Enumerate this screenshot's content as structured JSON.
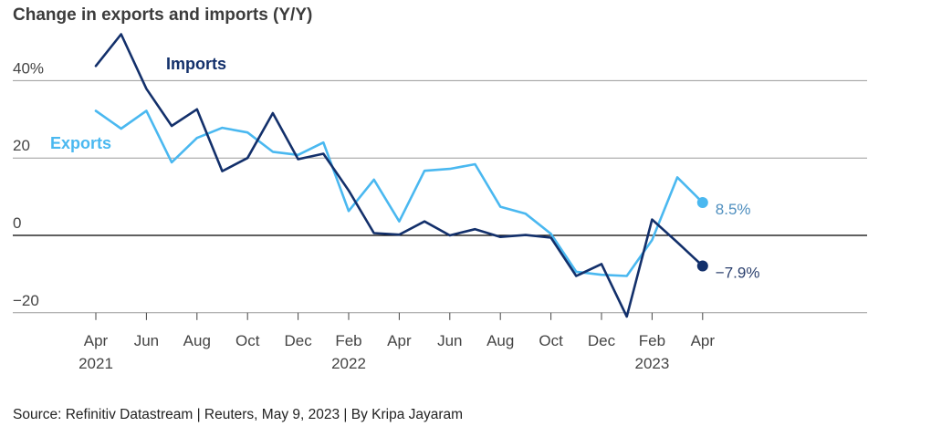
{
  "chart_data": {
    "type": "line",
    "title": "Change in exports and imports (Y/Y)",
    "xlabel": "",
    "ylabel": "",
    "ylim": [
      -21,
      45
    ],
    "yticks": [
      {
        "value": 40,
        "label": "40%"
      },
      {
        "value": 20,
        "label": "20"
      },
      {
        "value": 0,
        "label": "0"
      },
      {
        "value": -20,
        "label": "−20"
      }
    ],
    "xticks": [
      {
        "index": 0,
        "label": "Apr",
        "year": "2021"
      },
      {
        "index": 2,
        "label": "Jun",
        "year": ""
      },
      {
        "index": 4,
        "label": "Aug",
        "year": ""
      },
      {
        "index": 6,
        "label": "Oct",
        "year": ""
      },
      {
        "index": 8,
        "label": "Dec",
        "year": ""
      },
      {
        "index": 10,
        "label": "Feb",
        "year": "2022"
      },
      {
        "index": 12,
        "label": "Apr",
        "year": ""
      },
      {
        "index": 14,
        "label": "Jun",
        "year": ""
      },
      {
        "index": 16,
        "label": "Aug",
        "year": ""
      },
      {
        "index": 18,
        "label": "Oct",
        "year": ""
      },
      {
        "index": 20,
        "label": "Dec",
        "year": ""
      },
      {
        "index": 22,
        "label": "Feb",
        "year": "2023"
      },
      {
        "index": 24,
        "label": "Apr",
        "year": ""
      }
    ],
    "series": [
      {
        "name": "Imports",
        "color": "#13306b",
        "values": [
          43.8,
          52.0,
          37.9,
          28.3,
          32.6,
          16.6,
          20.0,
          31.6,
          19.7,
          21.1,
          11.6,
          0.6,
          0.2,
          3.6,
          0.0,
          1.6,
          -0.4,
          0.1,
          -0.6,
          -10.5,
          -7.4,
          -21.0,
          4.1,
          -1.8,
          -7.9
        ],
        "end_label": "−7.9%"
      },
      {
        "name": "Exports",
        "color": "#4ab8f0",
        "values": [
          32.2,
          27.6,
          32.2,
          18.9,
          25.2,
          27.8,
          26.6,
          21.6,
          20.8,
          24.0,
          6.3,
          14.4,
          3.6,
          16.7,
          17.2,
          18.4,
          7.4,
          5.6,
          0.4,
          -9.4,
          -10.2,
          -10.5,
          -1.2,
          15.0,
          8.5
        ],
        "end_label": "8.5%"
      }
    ]
  },
  "footer": {
    "source": "Source: Refinitiv Datastream | Reuters, May 9, 2023 | By Kripa Jayaram"
  }
}
